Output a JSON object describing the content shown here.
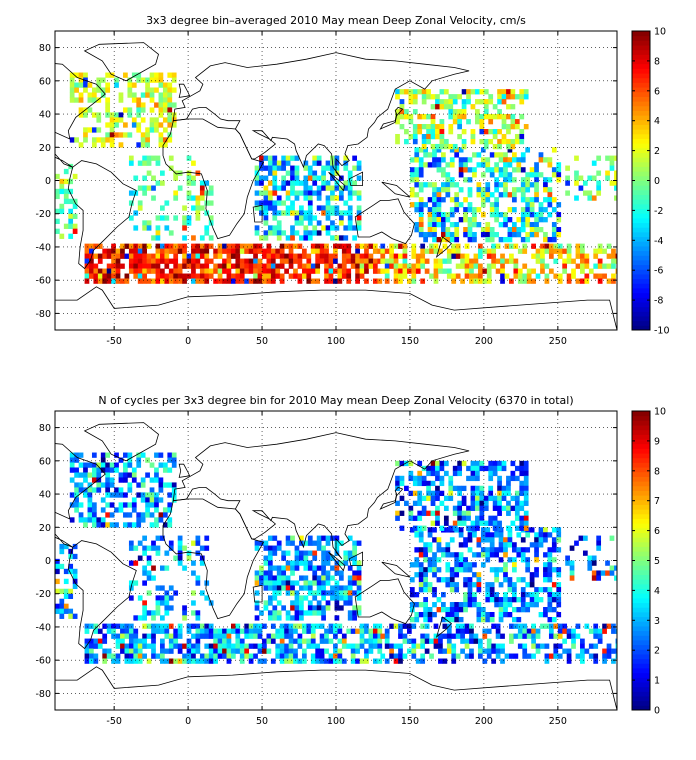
{
  "chart_data": [
    {
      "type": "heatmap",
      "title": "3x3 degree bin–averaged 2010 May mean Deep Zonal Velocity, cm/s",
      "xlabel": "",
      "ylabel": "",
      "xlim": [
        -90,
        290
      ],
      "ylim": [
        -90,
        90
      ],
      "x_ticks": [
        "-50",
        "0",
        "50",
        "100",
        "150",
        "200",
        "250"
      ],
      "y_ticks": [
        "80",
        "60",
        "40",
        "20",
        "0",
        "-20",
        "-40",
        "-60",
        "-80"
      ],
      "colorbar": {
        "min": -10,
        "max": 10,
        "ticks": [
          "10",
          "8",
          "6",
          "4",
          "2",
          "0",
          "-2",
          "-4",
          "-6",
          "-8",
          "-10"
        ]
      },
      "grid": true,
      "bin_size_deg": 3,
      "colormap": "jet",
      "seed": 7,
      "regions": [
        {
          "lon": [
            -80,
            -10
          ],
          "lat": [
            20,
            65
          ],
          "density": 0.55,
          "mean": 1.5,
          "spread": 2.5
        },
        {
          "lon": [
            -40,
            15
          ],
          "lat": [
            -35,
            15
          ],
          "density": 0.25,
          "mean": -0.5,
          "spread": 2.5
        },
        {
          "lon": [
            -70,
            130
          ],
          "lat": [
            -62,
            -38
          ],
          "density": 0.75,
          "mean": 7,
          "spread": 3
        },
        {
          "lon": [
            130,
            290
          ],
          "lat": [
            -62,
            -38
          ],
          "density": 0.55,
          "mean": 3,
          "spread": 4
        },
        {
          "lon": [
            45,
            115
          ],
          "lat": [
            -35,
            15
          ],
          "density": 0.6,
          "mean": -3,
          "spread": 4
        },
        {
          "lon": [
            150,
            250
          ],
          "lat": [
            -35,
            20
          ],
          "density": 0.55,
          "mean": -2,
          "spread": 5
        },
        {
          "lon": [
            140,
            230
          ],
          "lat": [
            20,
            55
          ],
          "density": 0.55,
          "mean": 1,
          "spread": 3.5
        },
        {
          "lon": [
            -90,
            -75
          ],
          "lat": [
            -35,
            10
          ],
          "density": 0.45,
          "mean": -1,
          "spread": 2.5
        },
        {
          "lon": [
            255,
            290
          ],
          "lat": [
            -10,
            15
          ],
          "density": 0.3,
          "mean": 0,
          "spread": 2.5
        }
      ]
    },
    {
      "type": "heatmap",
      "title": "N of cycles per 3x3 degree bin for 2010 May mean Deep Zonal Velocity (6370 in total)",
      "xlabel": "",
      "ylabel": "",
      "xlim": [
        -90,
        290
      ],
      "ylim": [
        -90,
        90
      ],
      "x_ticks": [
        "-50",
        "0",
        "50",
        "100",
        "150",
        "200",
        "250"
      ],
      "y_ticks": [
        "80",
        "60",
        "40",
        "20",
        "0",
        "-20",
        "-40",
        "-60",
        "-80"
      ],
      "colorbar": {
        "min": 0,
        "max": 10,
        "ticks": [
          "10",
          "9",
          "8",
          "7",
          "6",
          "5",
          "4",
          "3",
          "2",
          "1",
          "0"
        ]
      },
      "grid": true,
      "bin_size_deg": 3,
      "colormap": "jet",
      "seed": 11,
      "regions": [
        {
          "lon": [
            -80,
            -10
          ],
          "lat": [
            20,
            65
          ],
          "density": 0.55,
          "mean": 3,
          "spread": 2
        },
        {
          "lon": [
            -40,
            15
          ],
          "lat": [
            -35,
            15
          ],
          "density": 0.3,
          "mean": 3,
          "spread": 2
        },
        {
          "lon": [
            -70,
            130
          ],
          "lat": [
            -62,
            -38
          ],
          "density": 0.7,
          "mean": 3,
          "spread": 2
        },
        {
          "lon": [
            130,
            290
          ],
          "lat": [
            -62,
            -38
          ],
          "density": 0.55,
          "mean": 2.5,
          "spread": 2
        },
        {
          "lon": [
            45,
            115
          ],
          "lat": [
            -35,
            15
          ],
          "density": 0.6,
          "mean": 3,
          "spread": 2
        },
        {
          "lon": [
            150,
            250
          ],
          "lat": [
            -35,
            20
          ],
          "density": 0.55,
          "mean": 2.5,
          "spread": 2
        },
        {
          "lon": [
            140,
            230
          ],
          "lat": [
            20,
            60
          ],
          "density": 0.55,
          "mean": 2.5,
          "spread": 2
        },
        {
          "lon": [
            -90,
            -75
          ],
          "lat": [
            -35,
            10
          ],
          "density": 0.45,
          "mean": 3,
          "spread": 2
        },
        {
          "lon": [
            255,
            290
          ],
          "lat": [
            -10,
            15
          ],
          "density": 0.3,
          "mean": 2.5,
          "spread": 2
        }
      ]
    }
  ]
}
